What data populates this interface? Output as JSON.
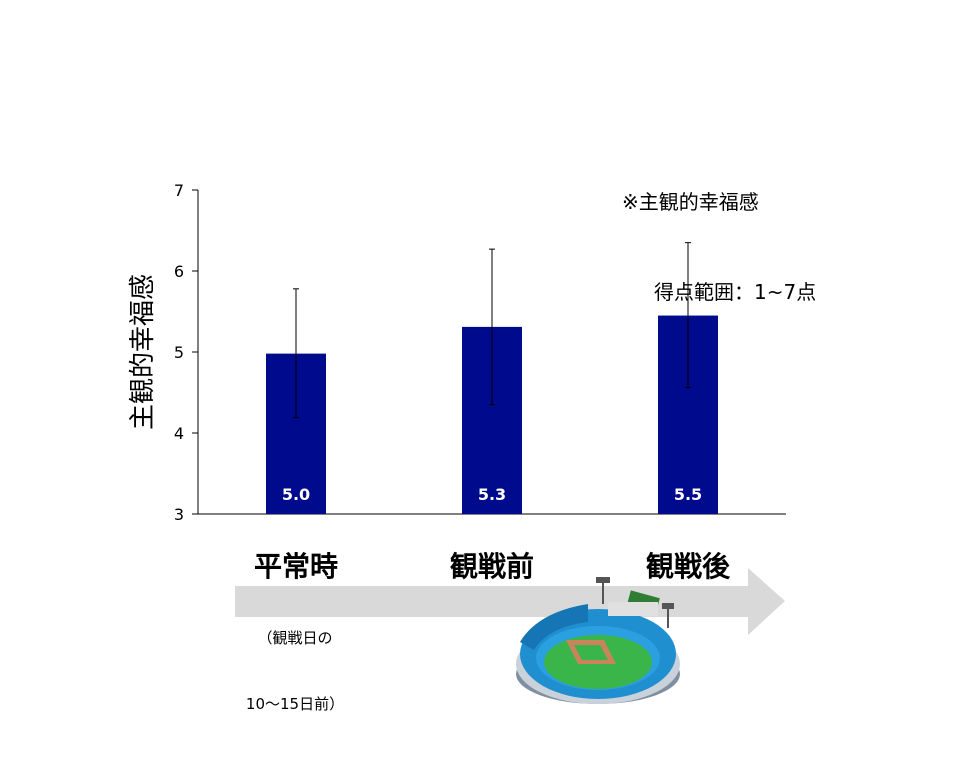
{
  "note": {
    "line1": "※主観的幸福感",
    "line2": "得点範囲：1~7点"
  },
  "timeline": {
    "sub_label_line1": "（観戦日の",
    "sub_label_line2": "10～15日前）"
  },
  "colors": {
    "bar": "#000a8c",
    "arrow": "#d9d9d9",
    "axis": "#000000"
  },
  "icons": [
    "baseball-stadium-icon",
    "arrow-right-icon"
  ],
  "chart_data": {
    "type": "bar",
    "title": "",
    "ylabel": "主観的幸福感",
    "xlabel": "",
    "categories": [
      "平常時",
      "観戦前",
      "観戦後"
    ],
    "series": [
      {
        "values": [
          4.98,
          5.31,
          5.45
        ],
        "data_labels": [
          "5.0",
          "5.3",
          "5.5"
        ],
        "error_upper": [
          5.78,
          6.27,
          6.35
        ],
        "error_lower": [
          4.19,
          4.35,
          4.56
        ]
      }
    ],
    "ylim": [
      3,
      7
    ],
    "yticks": [
      "3",
      "4",
      "5",
      "6",
      "7"
    ],
    "grid": false
  }
}
